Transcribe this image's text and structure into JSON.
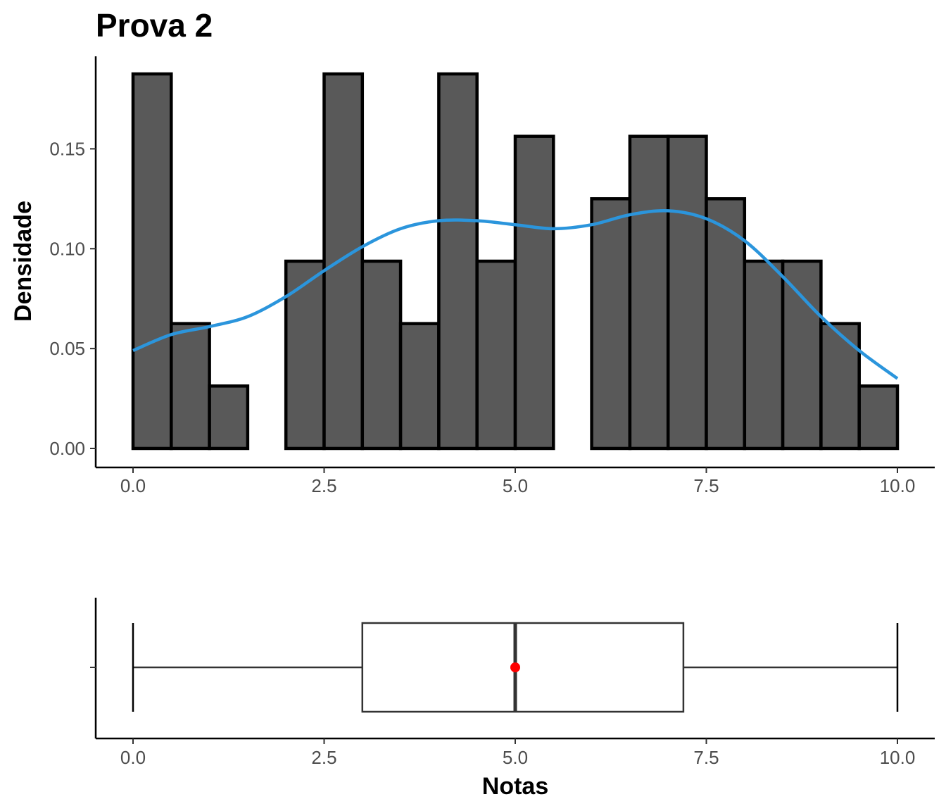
{
  "title": "Prova 2",
  "chart_data": [
    {
      "type": "histogram",
      "ylabel": "Densidade",
      "xlim": [
        0,
        10
      ],
      "ylim": [
        0,
        0.1875
      ],
      "x_ticks": [
        "0.0",
        "2.5",
        "5.0",
        "7.5",
        "10.0"
      ],
      "y_ticks": [
        "0.00",
        "0.05",
        "0.10",
        "0.15"
      ],
      "bin_width": 0.5,
      "bins": [
        {
          "start": 0.0,
          "density": 0.1875
        },
        {
          "start": 0.5,
          "density": 0.0625
        },
        {
          "start": 1.0,
          "density": 0.03125
        },
        {
          "start": 1.5,
          "density": 0.0
        },
        {
          "start": 2.0,
          "density": 0.09375
        },
        {
          "start": 2.5,
          "density": 0.1875
        },
        {
          "start": 3.0,
          "density": 0.09375
        },
        {
          "start": 3.5,
          "density": 0.0625
        },
        {
          "start": 4.0,
          "density": 0.1875
        },
        {
          "start": 4.5,
          "density": 0.09375
        },
        {
          "start": 5.0,
          "density": 0.15625
        },
        {
          "start": 5.5,
          "density": 0.0
        },
        {
          "start": 6.0,
          "density": 0.125
        },
        {
          "start": 6.5,
          "density": 0.15625
        },
        {
          "start": 7.0,
          "density": 0.15625
        },
        {
          "start": 7.5,
          "density": 0.125
        },
        {
          "start": 8.0,
          "density": 0.09375
        },
        {
          "start": 8.5,
          "density": 0.09375
        },
        {
          "start": 9.0,
          "density": 0.0625
        },
        {
          "start": 9.5,
          "density": 0.03125
        }
      ],
      "bar_fill": "#595959",
      "bar_stroke": "#000000",
      "density_curve": {
        "color": "#2B95DC",
        "x": [
          0,
          0.5,
          1.0,
          1.5,
          2.0,
          2.5,
          3.0,
          3.5,
          4.0,
          4.5,
          5.0,
          5.5,
          6.0,
          6.5,
          7.0,
          7.5,
          8.0,
          8.5,
          9.0,
          9.5,
          10.0
        ],
        "y": [
          0.049,
          0.057,
          0.061,
          0.066,
          0.076,
          0.089,
          0.101,
          0.11,
          0.114,
          0.114,
          0.112,
          0.11,
          0.112,
          0.117,
          0.119,
          0.115,
          0.104,
          0.086,
          0.066,
          0.049,
          0.035
        ]
      }
    },
    {
      "type": "boxplot",
      "xlabel": "Notas",
      "xlim": [
        0,
        10
      ],
      "x_ticks": [
        "0.0",
        "2.5",
        "5.0",
        "7.5",
        "10.0"
      ],
      "min": 0.0,
      "q1": 3.0,
      "median": 5.0,
      "q3": 7.2,
      "max": 10.0,
      "mean": 5.0,
      "mean_color": "#FF0000"
    }
  ]
}
